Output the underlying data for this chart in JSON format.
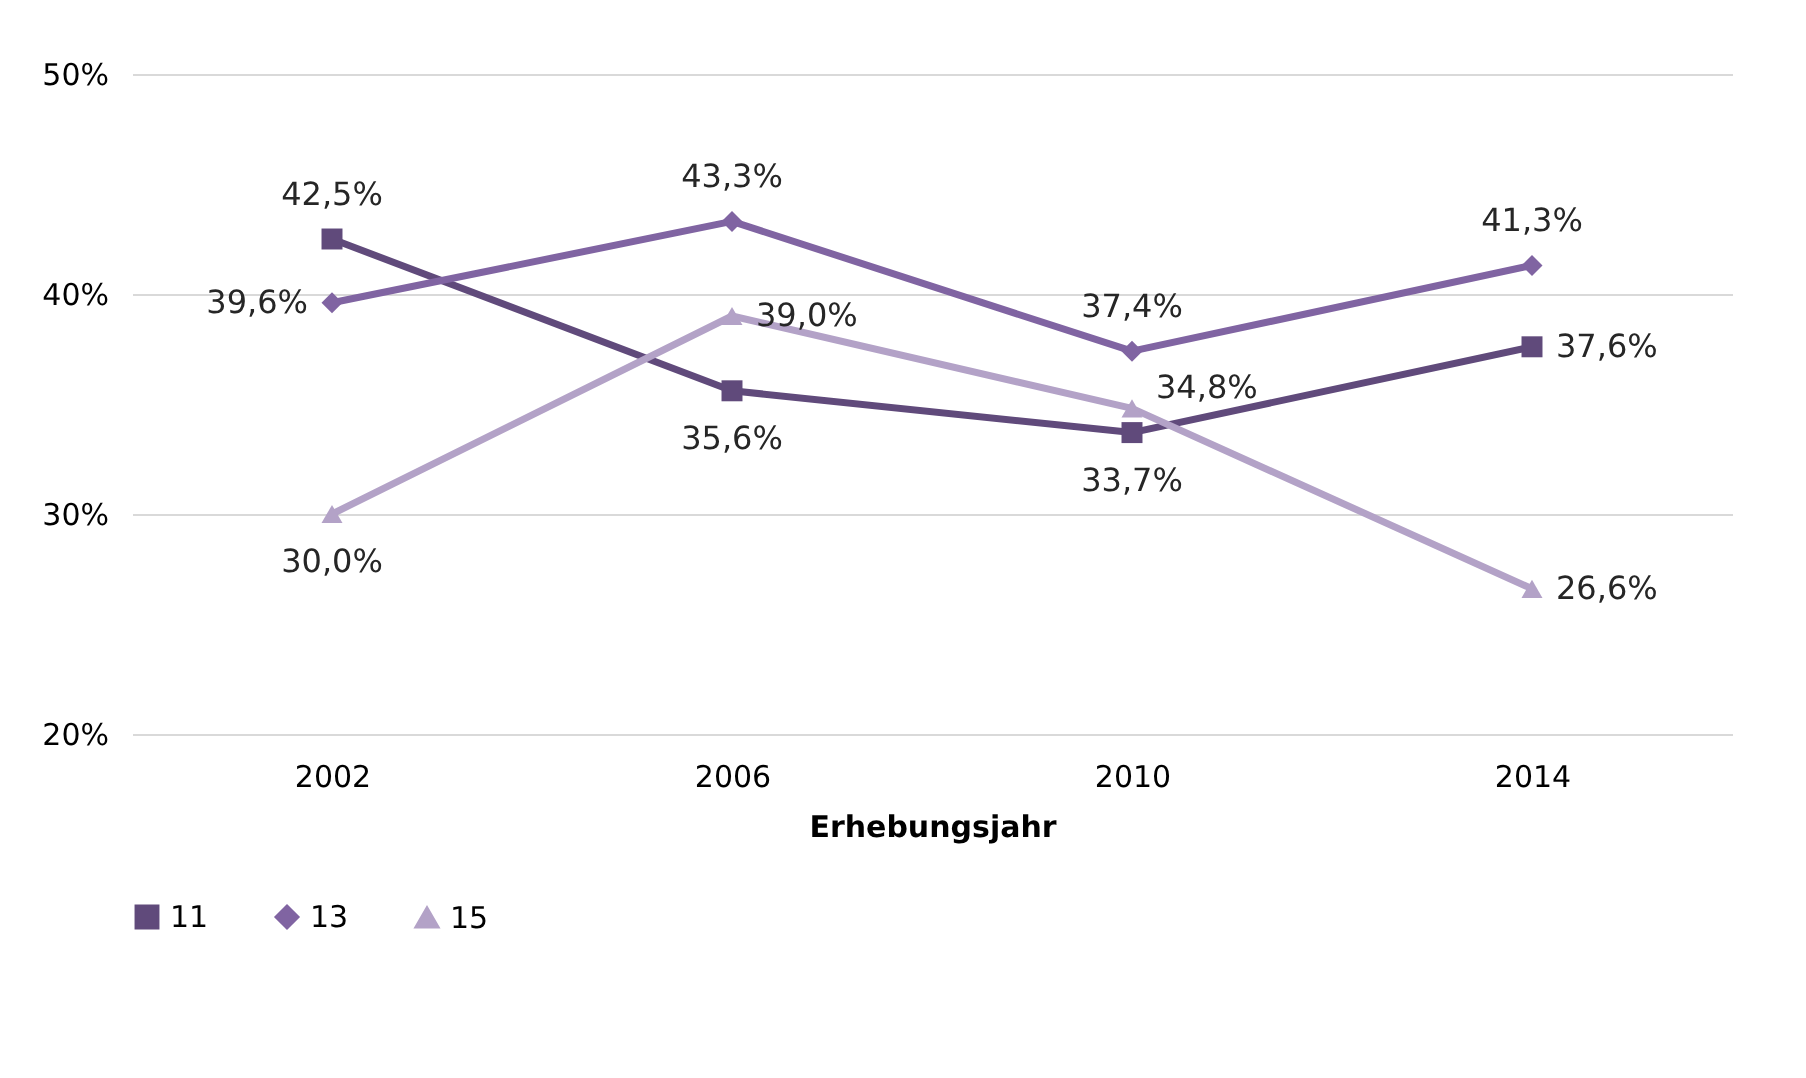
{
  "chart_data": {
    "type": "line",
    "xlabel": "Erhebungsjahr",
    "categories": [
      "2002",
      "2006",
      "2010",
      "2014"
    ],
    "series": [
      {
        "name": "11",
        "color": "#604a7b",
        "marker": "square",
        "values": [
          42.5,
          35.6,
          33.7,
          37.6
        ],
        "value_labels": [
          "42,5%",
          "35,6%",
          "33,7%",
          "37,6%"
        ]
      },
      {
        "name": "13",
        "color": "#8064a2",
        "marker": "diamond",
        "values": [
          39.6,
          43.3,
          37.4,
          41.3
        ],
        "value_labels": [
          "39,6%",
          "43,3%",
          "37,4%",
          "41,3%"
        ]
      },
      {
        "name": "15",
        "color": "#b3a2c7",
        "marker": "triangle",
        "values": [
          30.0,
          39.0,
          34.8,
          26.6
        ],
        "value_labels": [
          "30,0%",
          "39,0%",
          "34,8%",
          "26,6%"
        ]
      }
    ],
    "ylim": [
      20,
      50
    ],
    "yticks": [
      {
        "value": 20,
        "label": "20%"
      },
      {
        "value": 30,
        "label": "30%"
      },
      {
        "value": 40,
        "label": "40%"
      },
      {
        "value": 50,
        "label": "50%"
      }
    ],
    "grid": "y",
    "legend": "bottom",
    "line_style": "solid"
  }
}
